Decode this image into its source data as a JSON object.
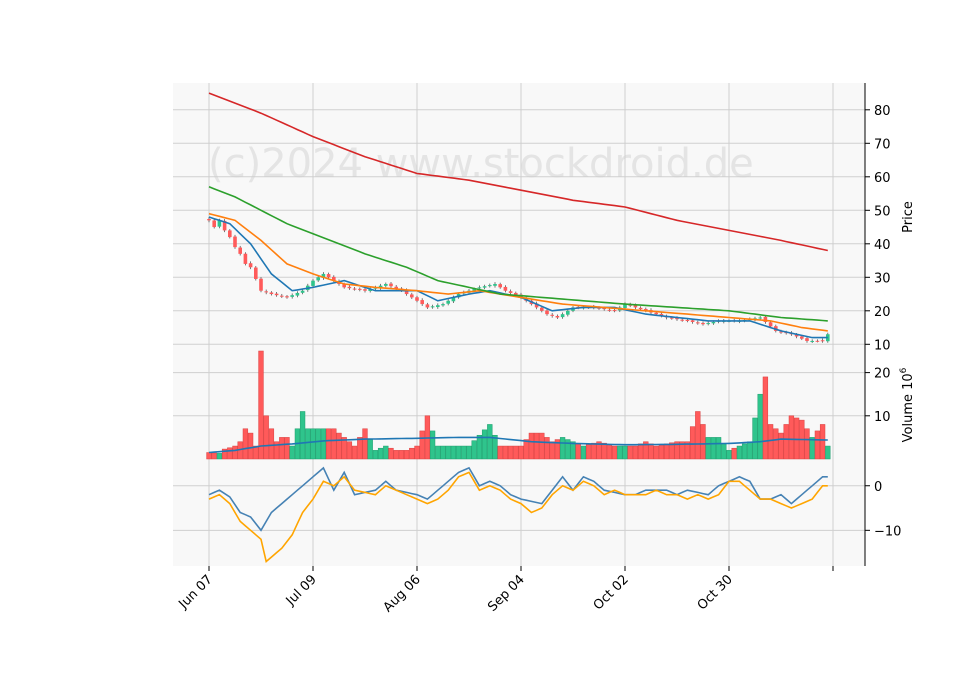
{
  "watermark": "(c)2024 www.stockdroid.de",
  "colors": {
    "panel_bg": "#f8f8f8",
    "grid": "#cfcfcf",
    "up": "#2fc48c",
    "down": "#ff5a5a",
    "ma_short": "#1f77b4",
    "ma_mid": "#ff7f0e",
    "ma_long": "#2ca02c",
    "ma_200": "#d62728",
    "macd": "#4682b4",
    "signal": "#ffa500"
  },
  "chart_data": [
    {
      "type": "candlestick",
      "ylabel": "Price",
      "ylim": [
        8,
        88
      ],
      "yticks": [
        10,
        20,
        30,
        40,
        50,
        60,
        70,
        80
      ],
      "x_tick_labels": [
        "Jun 07",
        "Jul 09",
        "Aug 06",
        "Sep 04",
        "Oct 02",
        "Oct 30",
        ""
      ],
      "x_tick_index": [
        0,
        20,
        40,
        60,
        80,
        100,
        120
      ],
      "n_points": 120,
      "close_anchors": [
        [
          0,
          47
        ],
        [
          1,
          45
        ],
        [
          2,
          47
        ],
        [
          3,
          44
        ],
        [
          4,
          42
        ],
        [
          5,
          39
        ],
        [
          6,
          37
        ],
        [
          7,
          34
        ],
        [
          8,
          33
        ],
        [
          10,
          26
        ],
        [
          12,
          25
        ],
        [
          15,
          24
        ],
        [
          18,
          26
        ],
        [
          20,
          29
        ],
        [
          22,
          31
        ],
        [
          24,
          29
        ],
        [
          26,
          27
        ],
        [
          30,
          26
        ],
        [
          34,
          28
        ],
        [
          37,
          26
        ],
        [
          40,
          23
        ],
        [
          42,
          21
        ],
        [
          45,
          22
        ],
        [
          48,
          25
        ],
        [
          52,
          27
        ],
        [
          55,
          28
        ],
        [
          57,
          26
        ],
        [
          60,
          24
        ],
        [
          63,
          21
        ],
        [
          65,
          19
        ],
        [
          67,
          18
        ],
        [
          70,
          21
        ],
        [
          74,
          21
        ],
        [
          78,
          20
        ],
        [
          80,
          22
        ],
        [
          84,
          20
        ],
        [
          88,
          18
        ],
        [
          92,
          17
        ],
        [
          95,
          16
        ],
        [
          98,
          17
        ],
        [
          102,
          17
        ],
        [
          106,
          18
        ],
        [
          109,
          14
        ],
        [
          112,
          13
        ],
        [
          115,
          11
        ],
        [
          118,
          11
        ],
        [
          119,
          13
        ]
      ],
      "ma_lines": [
        {
          "key": "ma_short",
          "values": [
            [
              0,
              48
            ],
            [
              4,
              46
            ],
            [
              8,
              40
            ],
            [
              12,
              31
            ],
            [
              16,
              26
            ],
            [
              20,
              27
            ],
            [
              26,
              29
            ],
            [
              32,
              26
            ],
            [
              40,
              26
            ],
            [
              44,
              23
            ],
            [
              50,
              25
            ],
            [
              54,
              26
            ],
            [
              60,
              24
            ],
            [
              66,
              20
            ],
            [
              72,
              21
            ],
            [
              78,
              21
            ],
            [
              84,
              19
            ],
            [
              90,
              18
            ],
            [
              96,
              17
            ],
            [
              104,
              17
            ],
            [
              110,
              14
            ],
            [
              116,
              12
            ],
            [
              119,
              12
            ]
          ]
        },
        {
          "key": "ma_mid",
          "values": [
            [
              0,
              49
            ],
            [
              5,
              47
            ],
            [
              10,
              41
            ],
            [
              15,
              34
            ],
            [
              20,
              31
            ],
            [
              26,
              28
            ],
            [
              32,
              27
            ],
            [
              40,
              26
            ],
            [
              46,
              25
            ],
            [
              52,
              26
            ],
            [
              60,
              24
            ],
            [
              68,
              22
            ],
            [
              76,
              21
            ],
            [
              84,
              20
            ],
            [
              92,
              19
            ],
            [
              100,
              18
            ],
            [
              108,
              17
            ],
            [
              114,
              15
            ],
            [
              119,
              14
            ]
          ]
        },
        {
          "key": "ma_long",
          "values": [
            [
              0,
              57
            ],
            [
              5,
              54
            ],
            [
              10,
              50
            ],
            [
              15,
              46
            ],
            [
              20,
              43
            ],
            [
              25,
              40
            ],
            [
              30,
              37
            ],
            [
              38,
              33
            ],
            [
              44,
              29
            ],
            [
              50,
              27
            ],
            [
              56,
              25
            ],
            [
              64,
              24
            ],
            [
              72,
              23
            ],
            [
              80,
              22
            ],
            [
              90,
              21
            ],
            [
              100,
              20
            ],
            [
              110,
              18
            ],
            [
              119,
              17
            ]
          ]
        },
        {
          "key": "ma_200",
          "values": [
            [
              0,
              85
            ],
            [
              10,
              79
            ],
            [
              20,
              72
            ],
            [
              30,
              66
            ],
            [
              40,
              61
            ],
            [
              50,
              59
            ],
            [
              60,
              56
            ],
            [
              70,
              53
            ],
            [
              80,
              51
            ],
            [
              90,
              47
            ],
            [
              100,
              44
            ],
            [
              110,
              41
            ],
            [
              119,
              38
            ]
          ]
        }
      ]
    },
    {
      "type": "bar",
      "ylabel": "Volume  10",
      "ylabel_exponent": "6",
      "ylim": [
        0,
        25
      ],
      "yticks": [
        10,
        20
      ],
      "volume_anchors": [
        [
          0,
          1.5
        ],
        [
          1,
          1.4
        ],
        [
          2,
          1.3
        ],
        [
          3,
          2.3
        ],
        [
          4,
          2.6
        ],
        [
          5,
          3
        ],
        [
          6,
          4
        ],
        [
          7,
          7
        ],
        [
          8,
          6
        ],
        [
          9,
          3
        ],
        [
          10,
          25
        ],
        [
          11,
          10
        ],
        [
          12,
          7
        ],
        [
          13,
          4
        ],
        [
          14,
          5
        ],
        [
          15,
          5
        ],
        [
          16,
          3
        ],
        [
          18,
          11
        ],
        [
          19,
          7
        ],
        [
          20,
          7
        ],
        [
          22,
          7
        ],
        [
          24,
          7
        ],
        [
          26,
          5
        ],
        [
          28,
          3
        ],
        [
          30,
          7
        ],
        [
          32,
          2
        ],
        [
          34,
          3
        ],
        [
          36,
          2
        ],
        [
          38,
          2
        ],
        [
          40,
          3
        ],
        [
          42,
          10
        ],
        [
          44,
          3
        ],
        [
          46,
          3
        ],
        [
          50,
          3
        ],
        [
          54,
          8
        ],
        [
          56,
          3
        ],
        [
          60,
          3
        ],
        [
          62,
          6
        ],
        [
          64,
          6
        ],
        [
          66,
          4
        ],
        [
          68,
          5
        ],
        [
          70,
          4
        ],
        [
          72,
          3
        ],
        [
          75,
          4
        ],
        [
          78,
          3
        ],
        [
          80,
          3
        ],
        [
          82,
          3
        ],
        [
          84,
          4
        ],
        [
          86,
          3
        ],
        [
          90,
          4
        ],
        [
          92,
          4
        ],
        [
          94,
          11
        ],
        [
          96,
          5
        ],
        [
          98,
          5
        ],
        [
          100,
          2
        ],
        [
          102,
          3
        ],
        [
          104,
          4
        ],
        [
          106,
          15
        ],
        [
          107,
          19
        ],
        [
          108,
          8
        ],
        [
          110,
          6
        ],
        [
          112,
          10
        ],
        [
          114,
          9
        ],
        [
          116,
          5
        ],
        [
          118,
          8
        ],
        [
          119,
          3
        ]
      ],
      "avg_line": [
        [
          0,
          1.5
        ],
        [
          5,
          2
        ],
        [
          10,
          3
        ],
        [
          16,
          3.5
        ],
        [
          22,
          4.2
        ],
        [
          30,
          4.6
        ],
        [
          40,
          4.8
        ],
        [
          48,
          5
        ],
        [
          54,
          5
        ],
        [
          58,
          4.5
        ],
        [
          62,
          4
        ],
        [
          70,
          3.6
        ],
        [
          80,
          3.3
        ],
        [
          90,
          3.4
        ],
        [
          100,
          3.6
        ],
        [
          106,
          4
        ],
        [
          110,
          4.6
        ],
        [
          119,
          4.4
        ]
      ]
    },
    {
      "type": "line",
      "ylim": [
        -18,
        6
      ],
      "yticks": [
        -10,
        0
      ],
      "series": [
        {
          "key": "macd",
          "values": [
            [
              0,
              -2
            ],
            [
              2,
              -1
            ],
            [
              4,
              -2.5
            ],
            [
              6,
              -6
            ],
            [
              8,
              -7
            ],
            [
              10,
              -10
            ],
            [
              12,
              -6
            ],
            [
              14,
              -4
            ],
            [
              18,
              0
            ],
            [
              20,
              2
            ],
            [
              22,
              4
            ],
            [
              24,
              -1
            ],
            [
              26,
              3
            ],
            [
              28,
              -2
            ],
            [
              32,
              -1
            ],
            [
              34,
              1
            ],
            [
              36,
              -1
            ],
            [
              40,
              -2
            ],
            [
              42,
              -3
            ],
            [
              44,
              -1
            ],
            [
              46,
              1
            ],
            [
              48,
              3
            ],
            [
              50,
              4
            ],
            [
              52,
              0
            ],
            [
              54,
              1
            ],
            [
              56,
              0
            ],
            [
              58,
              -2
            ],
            [
              60,
              -3
            ],
            [
              64,
              -4
            ],
            [
              66,
              -1
            ],
            [
              68,
              2
            ],
            [
              70,
              -1
            ],
            [
              72,
              2
            ],
            [
              74,
              1
            ],
            [
              76,
              -1
            ],
            [
              80,
              -2
            ],
            [
              82,
              -2
            ],
            [
              84,
              -1
            ],
            [
              88,
              -1
            ],
            [
              90,
              -2
            ],
            [
              92,
              -1
            ],
            [
              96,
              -2
            ],
            [
              98,
              0
            ],
            [
              102,
              2
            ],
            [
              104,
              1
            ],
            [
              106,
              -3
            ],
            [
              108,
              -3
            ],
            [
              110,
              -2
            ],
            [
              112,
              -4
            ],
            [
              114,
              -2
            ],
            [
              118,
              2
            ],
            [
              119,
              2
            ]
          ]
        },
        {
          "key": "signal",
          "values": [
            [
              0,
              -3
            ],
            [
              2,
              -2
            ],
            [
              4,
              -4
            ],
            [
              6,
              -8
            ],
            [
              8,
              -10
            ],
            [
              10,
              -12
            ],
            [
              11,
              -17
            ],
            [
              12,
              -16
            ],
            [
              14,
              -14
            ],
            [
              16,
              -11
            ],
            [
              18,
              -6
            ],
            [
              20,
              -3
            ],
            [
              22,
              1
            ],
            [
              24,
              0
            ],
            [
              26,
              2
            ],
            [
              28,
              -1
            ],
            [
              32,
              -2
            ],
            [
              34,
              0
            ],
            [
              36,
              -1
            ],
            [
              40,
              -3
            ],
            [
              42,
              -4
            ],
            [
              44,
              -3
            ],
            [
              46,
              -1
            ],
            [
              48,
              2
            ],
            [
              50,
              3
            ],
            [
              52,
              -1
            ],
            [
              54,
              0
            ],
            [
              56,
              -1
            ],
            [
              58,
              -3
            ],
            [
              60,
              -4
            ],
            [
              62,
              -6
            ],
            [
              64,
              -5
            ],
            [
              66,
              -2
            ],
            [
              68,
              0
            ],
            [
              70,
              -1
            ],
            [
              72,
              1
            ],
            [
              74,
              0
            ],
            [
              76,
              -2
            ],
            [
              78,
              -1
            ],
            [
              80,
              -2
            ],
            [
              82,
              -2
            ],
            [
              84,
              -2
            ],
            [
              86,
              -1
            ],
            [
              88,
              -2
            ],
            [
              90,
              -2
            ],
            [
              92,
              -3
            ],
            [
              94,
              -2
            ],
            [
              96,
              -3
            ],
            [
              98,
              -2
            ],
            [
              100,
              1
            ],
            [
              102,
              1
            ],
            [
              104,
              -1
            ],
            [
              106,
              -3
            ],
            [
              108,
              -3
            ],
            [
              110,
              -4
            ],
            [
              112,
              -5
            ],
            [
              114,
              -4
            ],
            [
              116,
              -3
            ],
            [
              118,
              0
            ],
            [
              119,
              0
            ]
          ]
        }
      ]
    }
  ]
}
